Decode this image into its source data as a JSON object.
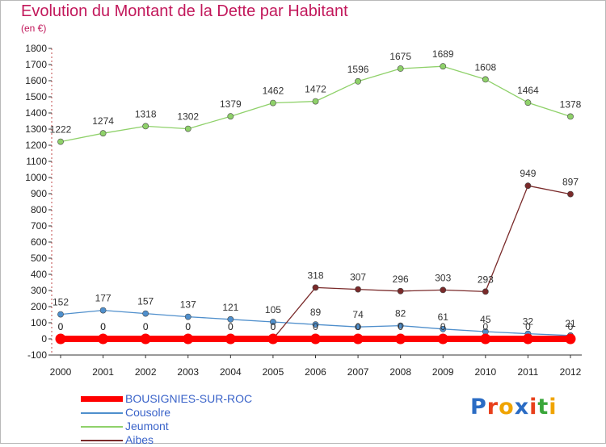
{
  "header": {
    "title": "Evolution du Montant de la Dette par Habitant",
    "subtitle": "(en €)"
  },
  "logo": {
    "text": "Proxiti",
    "colors": [
      "#2b6cc4",
      "#e8401c",
      "#f0a400",
      "#2b6cc4",
      "#e8401c",
      "#3aa63a",
      "#f0a400"
    ]
  },
  "chart_data": {
    "type": "line",
    "title": "Evolution du Montant de la Dette par Habitant",
    "ylabel": "(en €)",
    "xlabel": "",
    "ylim": [
      -100,
      1800
    ],
    "yticks": [
      -100,
      0,
      100,
      200,
      300,
      400,
      500,
      600,
      700,
      800,
      900,
      1000,
      1100,
      1200,
      1300,
      1400,
      1500,
      1600,
      1700,
      1800
    ],
    "grid": false,
    "legend_position": "bottom-left",
    "x": [
      "2000",
      "2001",
      "2002",
      "2003",
      "2004",
      "2005",
      "2006",
      "2007",
      "2008",
      "2009",
      "2010",
      "2011",
      "2012"
    ],
    "series": [
      {
        "name": "BOUSIGNIES-SUR-ROC",
        "color": "#ff0000",
        "values": [
          0,
          0,
          0,
          0,
          0,
          0,
          0,
          0,
          0,
          0,
          0,
          0,
          0
        ],
        "labels": [
          "0",
          "0",
          "0",
          "0",
          "0",
          "0",
          "0",
          "0",
          "0",
          "0",
          "0",
          "0",
          "0"
        ]
      },
      {
        "name": "Cousolre",
        "color": "#4f8fcc",
        "values": [
          152,
          177,
          157,
          137,
          121,
          105,
          89,
          74,
          82,
          61,
          45,
          32,
          21
        ],
        "labels": [
          "152",
          "177",
          "157",
          "137",
          "121",
          "105",
          "89",
          "74",
          "82",
          "61",
          "45",
          "32",
          "21"
        ]
      },
      {
        "name": "Jeumont",
        "color": "#8fd16a",
        "values": [
          1222,
          1274,
          1318,
          1302,
          1379,
          1462,
          1472,
          1596,
          1675,
          1689,
          1608,
          1464,
          1378
        ],
        "labels": [
          "1222",
          "1274",
          "1318",
          "1302",
          "1379",
          "1462",
          "1472",
          "1596",
          "1675",
          "1689",
          "1608",
          "1464",
          "1378"
        ]
      },
      {
        "name": "Aibes",
        "color": "#7a2a2a",
        "values": [
          0,
          0,
          0,
          0,
          0,
          0,
          318,
          307,
          296,
          303,
          293,
          949,
          897
        ],
        "labels": [
          "0",
          "0",
          "0",
          "0",
          "0",
          "0",
          "318",
          "307",
          "296",
          "303",
          "293",
          "949",
          "897"
        ]
      }
    ]
  }
}
